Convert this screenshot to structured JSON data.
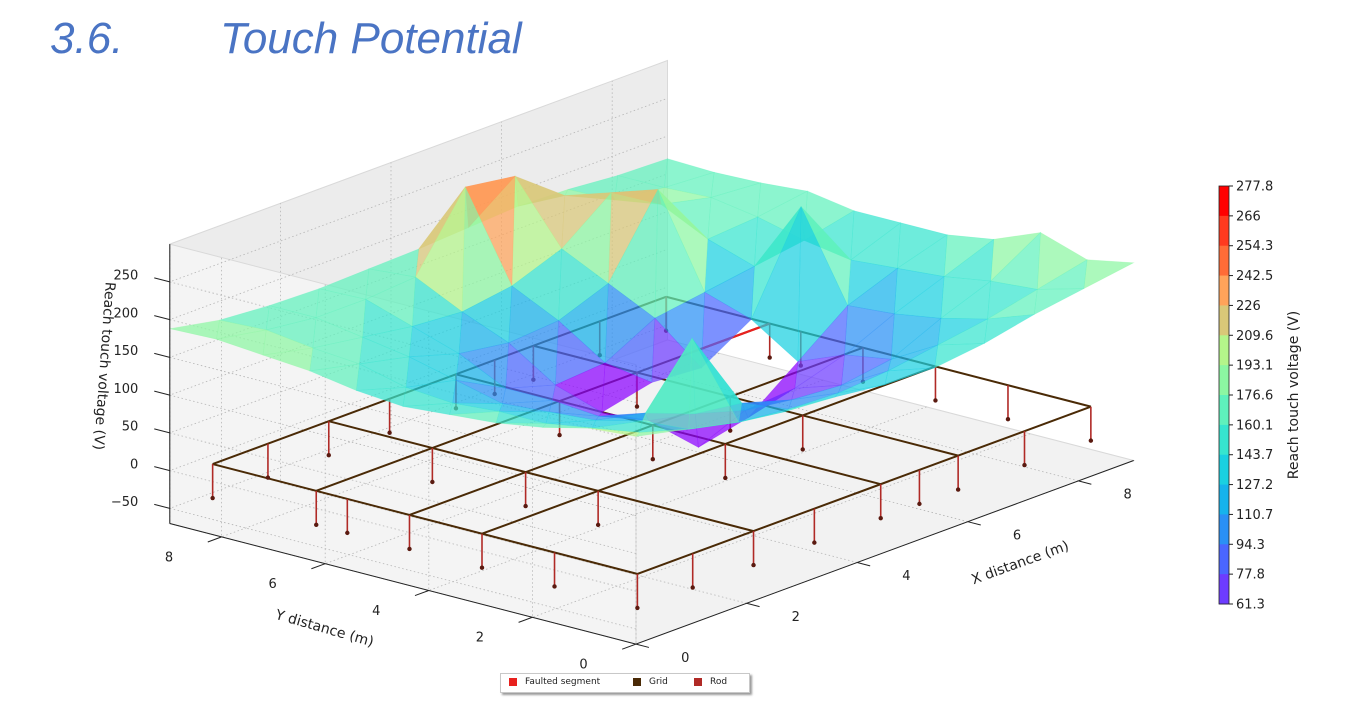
{
  "heading": {
    "number": "3.6.",
    "title": "Touch Potential"
  },
  "colors": {
    "heading": "#4a74c4",
    "faulted": "#e8211e",
    "grid": "#4a2a06",
    "rod": "#b02a26"
  },
  "chart_data": {
    "type": "surface-3d",
    "title": "",
    "xlabel": "X distance (m)",
    "ylabel": "Y distance (m)",
    "zlabel": "Reach touch voltage (V)",
    "x_ticks": [
      "0",
      "2",
      "4",
      "6",
      "8"
    ],
    "y_ticks": [
      "0",
      "2",
      "4",
      "6",
      "8"
    ],
    "z_ticks": [
      "−50",
      "0",
      "50",
      "100",
      "150",
      "200",
      "250"
    ],
    "xlim": [
      0,
      9
    ],
    "ylim": [
      0,
      9
    ],
    "zlim": [
      -70,
      300
    ],
    "grid": true,
    "surface_z": [
      [
        205,
        190,
        175,
        165,
        160,
        152,
        150,
        158,
        172,
        182,
        192
      ],
      [
        200,
        170,
        150,
        135,
        128,
        125,
        130,
        140,
        150,
        165,
        180
      ],
      [
        185,
        160,
        145,
        230,
        120,
        100,
        95,
        105,
        135,
        160,
        200
      ],
      [
        175,
        150,
        130,
        115,
        90,
        70,
        75,
        95,
        125,
        150,
        175
      ],
      [
        170,
        150,
        125,
        95,
        65,
        5,
        20,
        70,
        120,
        145,
        165
      ],
      [
        165,
        145,
        120,
        100,
        60,
        75,
        70,
        110,
        235,
        140,
        165
      ],
      [
        170,
        150,
        135,
        100,
        80,
        85,
        120,
        130,
        140,
        150,
        165
      ],
      [
        180,
        165,
        150,
        130,
        120,
        125,
        150,
        250,
        160,
        165,
        175
      ],
      [
        185,
        170,
        160,
        150,
        145,
        155,
        180,
        230,
        190,
        175,
        170
      ],
      [
        190,
        178,
        170,
        170,
        175,
        270,
        260,
        210,
        180,
        172,
        168
      ],
      [
        188,
        175,
        170,
        168,
        170,
        172,
        176,
        180,
        178,
        172,
        170
      ]
    ],
    "hole": {
      "x_range": [
        4,
        6
      ],
      "y_range": [
        3.2,
        4.6
      ]
    },
    "grid_conductors": {
      "x_lines": [
        0.4,
        2.5,
        4.8,
        6.2,
        8.6
      ],
      "y_lines": [
        0.4,
        3.4,
        4.8,
        6.6,
        8.6
      ],
      "faulted_segment": [
        [
          7.1,
          6.6
        ],
        [
          8.6,
          6.6
        ]
      ]
    },
    "colorbar": {
      "label": "Reach touch voltage (V)",
      "ticks": [
        "277.8",
        "266",
        "254.3",
        "242.5",
        "226",
        "209.6",
        "193.1",
        "176.6",
        "160.1",
        "143.7",
        "127.2",
        "110.7",
        "94.3",
        "77.8",
        "61.3"
      ],
      "colors": [
        "#ff0000",
        "#ff3a1f",
        "#ff6c37",
        "#ffa35a",
        "#d9c878",
        "#b4f58a",
        "#8cf7a2",
        "#5ff1bc",
        "#36e5cf",
        "#1ad0e1",
        "#16b3ec",
        "#2a90f5",
        "#4a66ff",
        "#6d3cff",
        "#8b00ff"
      ],
      "vmin": 61.3,
      "vmax": 277.8
    },
    "legend": [
      {
        "label": "Faulted segment",
        "color": "#e8211e"
      },
      {
        "label": "Grid",
        "color": "#4a2a06"
      },
      {
        "label": "Rod",
        "color": "#b02a26"
      }
    ],
    "legend_position": "bottom-center"
  }
}
